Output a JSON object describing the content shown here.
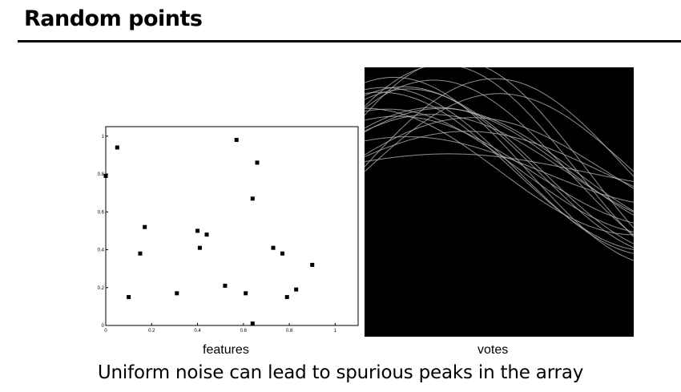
{
  "slide": {
    "title": "Random points",
    "caption": "Uniform noise can lead to spurious peaks in the array"
  },
  "labels": {
    "features": "features",
    "votes": "votes"
  },
  "colors": {
    "background": "#ffffff",
    "rule": "#000000",
    "accumulator_bg": "#000000",
    "vote_curve": "#bdbdbd"
  },
  "chart_data": {
    "type": "scatter",
    "title": "",
    "xlabel": "",
    "ylabel": "",
    "xlim": [
      0,
      1.1
    ],
    "ylim": [
      0,
      1.05
    ],
    "x_ticks": [
      "0",
      "0.2",
      "0.4",
      "0.6",
      "0.8",
      "1"
    ],
    "y_ticks": [
      "0",
      "0.2",
      "0.4",
      "0.6",
      "0.8",
      "1"
    ],
    "points": [
      {
        "x": 0.05,
        "y": 0.94
      },
      {
        "x": 0.0,
        "y": 0.79
      },
      {
        "x": 0.57,
        "y": 0.98
      },
      {
        "x": 0.66,
        "y": 0.86
      },
      {
        "x": 0.64,
        "y": 0.67
      },
      {
        "x": 0.17,
        "y": 0.52
      },
      {
        "x": 0.4,
        "y": 0.5
      },
      {
        "x": 0.44,
        "y": 0.48
      },
      {
        "x": 0.15,
        "y": 0.38
      },
      {
        "x": 0.41,
        "y": 0.41
      },
      {
        "x": 0.73,
        "y": 0.41
      },
      {
        "x": 0.77,
        "y": 0.38
      },
      {
        "x": 0.9,
        "y": 0.32
      },
      {
        "x": 0.52,
        "y": 0.21
      },
      {
        "x": 0.83,
        "y": 0.19
      },
      {
        "x": 0.31,
        "y": 0.17
      },
      {
        "x": 0.61,
        "y": 0.17
      },
      {
        "x": 0.1,
        "y": 0.15
      },
      {
        "x": 0.79,
        "y": 0.15
      },
      {
        "x": 0.64,
        "y": 0.01
      }
    ]
  }
}
